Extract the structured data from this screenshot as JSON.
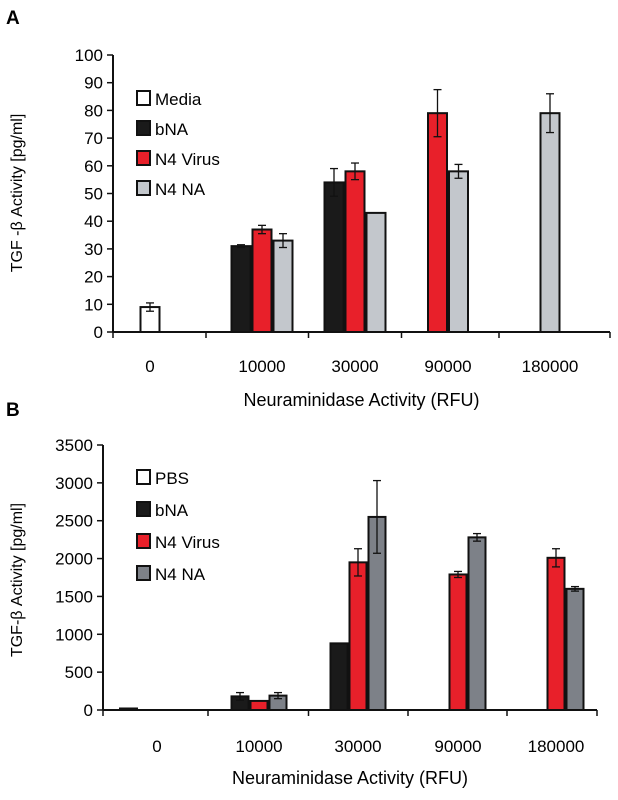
{
  "colors": {
    "media_fill": "#ffffff",
    "bna_fill": "#1a1a1a",
    "n4virus_fill": "#e8202a",
    "n4na_fill_a": "#c3c7cc",
    "n4na_fill_b": "#7d8188",
    "outline": "#111111"
  },
  "chart_data": [
    {
      "type": "bar",
      "panel_label": "A",
      "ylabel": "TGF -β Activity  [pg/ml]",
      "xlabel": "Neuraminidase Activity  (RFU)",
      "categories": [
        "0",
        "10000",
        "30000",
        "90000",
        "180000"
      ],
      "ylim": [
        0,
        100
      ],
      "yticks": [
        0,
        10,
        20,
        30,
        40,
        50,
        60,
        70,
        80,
        90,
        100
      ],
      "legend_position": "top-left",
      "series": [
        {
          "name": "Media",
          "color_key": "media_fill",
          "values": [
            9,
            null,
            null,
            null,
            null
          ],
          "errors": [
            1.5,
            null,
            null,
            null,
            null
          ]
        },
        {
          "name": "bNA",
          "color_key": "bna_fill",
          "values": [
            null,
            31,
            54,
            null,
            null
          ],
          "errors": [
            null,
            0.5,
            5,
            null,
            null
          ]
        },
        {
          "name": "N4 Virus",
          "color_key": "n4virus_fill",
          "values": [
            null,
            37,
            58,
            79,
            null
          ],
          "errors": [
            null,
            1.5,
            3,
            8.5,
            null
          ]
        },
        {
          "name": "N4 NA",
          "color_key": "n4na_fill_a",
          "values": [
            null,
            33,
            43,
            58,
            79
          ],
          "errors": [
            null,
            2.5,
            0,
            2.5,
            7
          ]
        }
      ]
    },
    {
      "type": "bar",
      "panel_label": "B",
      "ylabel": "TGF-β Activity  [pg/ml]",
      "xlabel": "Neuraminidase Activity  (RFU)",
      "categories": [
        "0",
        "10000",
        "30000",
        "90000",
        "180000"
      ],
      "ylim": [
        0,
        3500
      ],
      "yticks": [
        0,
        500,
        1000,
        1500,
        2000,
        2500,
        3000,
        3500
      ],
      "legend_position": "top-left",
      "series": [
        {
          "name": "PBS",
          "color_key": "media_fill",
          "values": [
            20,
            null,
            null,
            null,
            null
          ],
          "errors": [
            0,
            null,
            null,
            null,
            null
          ]
        },
        {
          "name": "bNA",
          "color_key": "bna_fill",
          "values": [
            0,
            180,
            880,
            0,
            0
          ],
          "errors": [
            0,
            50,
            0,
            0,
            0
          ]
        },
        {
          "name": "N4 Virus",
          "color_key": "n4virus_fill",
          "values": [
            0,
            120,
            1950,
            1790,
            2010
          ],
          "errors": [
            0,
            0,
            180,
            40,
            120
          ]
        },
        {
          "name": "N4 NA",
          "color_key": "n4na_fill_b",
          "values": [
            0,
            190,
            2550,
            2280,
            1600
          ],
          "errors": [
            0,
            40,
            480,
            50,
            30
          ]
        }
      ]
    }
  ]
}
